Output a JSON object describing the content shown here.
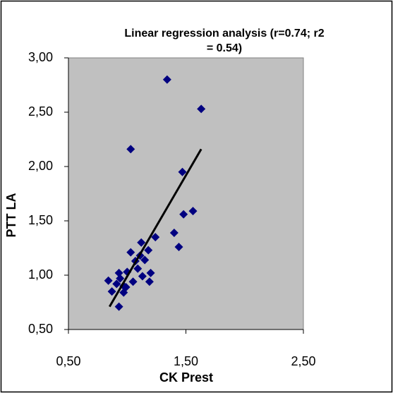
{
  "chart_data": {
    "type": "scatter",
    "title": [
      "Linear regression analysis (r=0.74; r2",
      "= 0.54)"
    ],
    "x_label": "CK Prest",
    "y_label": "PTT LA",
    "color": "#000080",
    "plot_background": "#c0c0c0",
    "grid": false,
    "xlim": [
      0.5,
      2.5
    ],
    "xticks": [
      {
        "value": 0.5,
        "label": "0,50"
      },
      {
        "value": 1.5,
        "label": "1,50"
      },
      {
        "value": 2.5,
        "label": "2,50"
      }
    ],
    "ylim": [
      0.5,
      3.0
    ],
    "yticks": [
      {
        "value": 0.5,
        "label": "0,50"
      },
      {
        "value": 1.0,
        "label": "1,00"
      },
      {
        "value": 1.5,
        "label": "1,50"
      },
      {
        "value": 2.0,
        "label": "2,00"
      },
      {
        "value": 2.5,
        "label": "2,50"
      },
      {
        "value": 3.0,
        "label": "3,00"
      }
    ],
    "x": [
      1.34,
      1.63,
      1.03,
      1.47,
      1.56,
      1.48,
      1.4,
      1.44,
      0.84,
      0.87,
      0.93,
      0.93,
      0.97,
      1.03,
      1.12,
      1.18,
      1.15,
      1.13,
      1.2,
      1.19,
      1.09,
      1.0,
      1.05,
      0.97,
      0.91,
      1.07,
      1.11,
      0.94,
      0.99,
      1.24
    ],
    "values": [
      2.8,
      2.53,
      2.16,
      1.95,
      1.59,
      1.56,
      1.39,
      1.26,
      0.95,
      0.85,
      0.71,
      1.02,
      0.9,
      1.21,
      1.3,
      1.23,
      1.14,
      0.99,
      1.02,
      0.94,
      1.06,
      1.03,
      0.94,
      0.84,
      0.92,
      1.13,
      1.18,
      0.97,
      0.89,
      1.35
    ],
    "trendline": {
      "color": "#000000",
      "x": [
        0.85,
        1.63
      ],
      "values": [
        0.71,
        2.16
      ]
    }
  }
}
